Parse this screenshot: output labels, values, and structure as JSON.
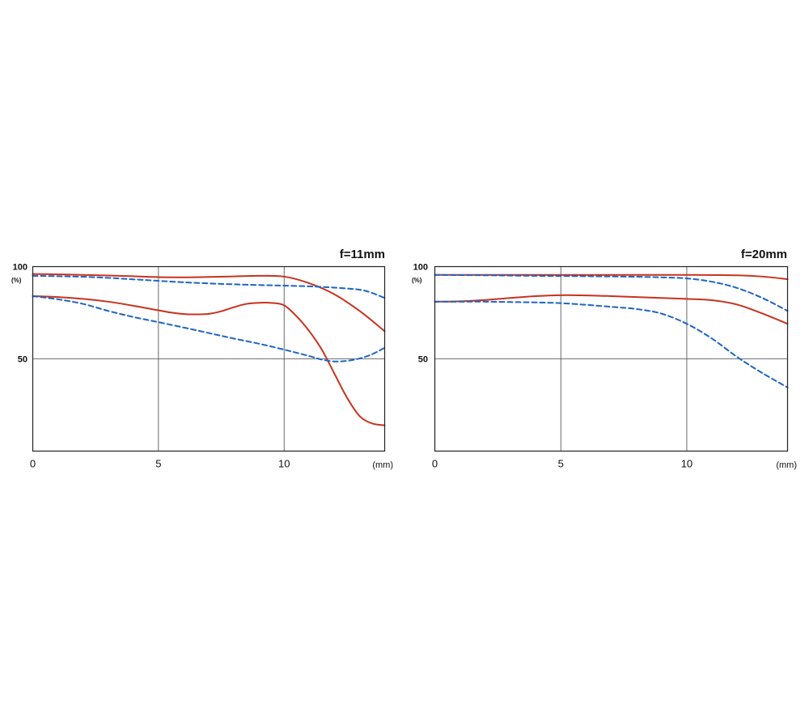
{
  "chart_data": [
    {
      "type": "line",
      "title": "f=11mm",
      "xlabel": "(mm)",
      "ylabel": "(%)",
      "xlim": [
        0,
        14
      ],
      "ylim": [
        0,
        100
      ],
      "x_ticks": [
        {
          "value": 0,
          "label": "0"
        },
        {
          "value": 5,
          "label": "5"
        },
        {
          "value": 10,
          "label": "10"
        }
      ],
      "y_ticks": [
        {
          "value": 100,
          "label": "100"
        },
        {
          "value": 50,
          "label": "50"
        }
      ],
      "grid": true,
      "series": [
        {
          "color": "#c8321e",
          "style": "solid",
          "x": [
            0,
            1,
            2,
            3,
            4,
            5,
            6,
            7,
            8,
            9,
            10,
            11,
            12,
            13,
            14
          ],
          "y": [
            96,
            95.8,
            95.5,
            95.2,
            94.8,
            94.3,
            94.2,
            94.4,
            94.7,
            95,
            94.6,
            91,
            85,
            76,
            65
          ]
        },
        {
          "color": "#c8321e",
          "style": "solid",
          "x": [
            0,
            1,
            2,
            3,
            4,
            5,
            5.5,
            6,
            6.5,
            7,
            7.5,
            8,
            8.5,
            9,
            9.5,
            10,
            10.5,
            11,
            11.5,
            12,
            12.5,
            13,
            13.5,
            14
          ],
          "y": [
            84,
            83.5,
            82.5,
            81,
            78.8,
            76.3,
            75.1,
            74.3,
            74.1,
            74.4,
            75.8,
            78,
            79.8,
            80.4,
            80.3,
            79,
            73,
            65,
            55,
            42,
            29,
            19,
            15,
            14
          ]
        },
        {
          "color": "#1e64c8",
          "style": "dashed",
          "x": [
            0,
            1,
            2,
            3,
            4,
            5,
            6,
            7,
            8,
            9,
            10,
            11,
            12,
            13,
            13.5,
            14
          ],
          "y": [
            95,
            94.8,
            94.5,
            93.9,
            93.1,
            92.3,
            91.5,
            90.9,
            90.4,
            90,
            89.7,
            89.3,
            88.6,
            87.5,
            85.7,
            83
          ]
        },
        {
          "color": "#1e64c8",
          "style": "dashed",
          "x": [
            0,
            1,
            2,
            3,
            4,
            5,
            6,
            7,
            8,
            9,
            10,
            11,
            11.5,
            12,
            12.5,
            13,
            13.5,
            14
          ],
          "y": [
            84,
            82.3,
            79.8,
            76,
            72.7,
            69.9,
            67,
            64,
            61,
            58.2,
            55,
            51.5,
            49.6,
            48.6,
            48.9,
            50.2,
            52.5,
            56
          ]
        }
      ]
    },
    {
      "type": "line",
      "title": "f=20mm",
      "xlabel": "(mm)",
      "ylabel": "(%)",
      "xlim": [
        0,
        14
      ],
      "ylim": [
        0,
        100
      ],
      "x_ticks": [
        {
          "value": 0,
          "label": "0"
        },
        {
          "value": 5,
          "label": "5"
        },
        {
          "value": 10,
          "label": "10"
        }
      ],
      "y_ticks": [
        {
          "value": 100,
          "label": "100"
        },
        {
          "value": 50,
          "label": "50"
        }
      ],
      "grid": true,
      "series": [
        {
          "color": "#c8321e",
          "style": "solid",
          "x": [
            0,
            2,
            4,
            6,
            8,
            10,
            12,
            13,
            14
          ],
          "y": [
            95.5,
            95.5,
            95.5,
            95.5,
            95.5,
            95.5,
            95.3,
            94.6,
            93.2
          ]
        },
        {
          "color": "#c8321e",
          "style": "solid",
          "x": [
            0,
            1,
            2,
            3,
            4,
            5,
            6,
            7,
            8,
            9,
            10,
            11,
            12,
            13,
            14
          ],
          "y": [
            81,
            81.2,
            81.9,
            83,
            84,
            84.5,
            84.4,
            84,
            83.5,
            83,
            82.5,
            81.8,
            79.4,
            74.6,
            69
          ]
        },
        {
          "color": "#1e64c8",
          "style": "dashed",
          "x": [
            0,
            2,
            4,
            6,
            8,
            9,
            10,
            11,
            12,
            13,
            14
          ],
          "y": [
            95.5,
            95.3,
            95,
            94.8,
            94.5,
            94.2,
            93.6,
            91.8,
            88.4,
            83,
            76
          ]
        },
        {
          "color": "#1e64c8",
          "style": "dashed",
          "x": [
            0,
            1,
            2,
            3,
            4,
            5,
            6,
            7,
            8,
            9,
            10,
            11,
            12,
            13,
            14
          ],
          "y": [
            81,
            81,
            81,
            80.8,
            80.6,
            80.2,
            79.3,
            78.2,
            77,
            74.5,
            69,
            61,
            51,
            42.3,
            34.5
          ]
        }
      ]
    }
  ]
}
